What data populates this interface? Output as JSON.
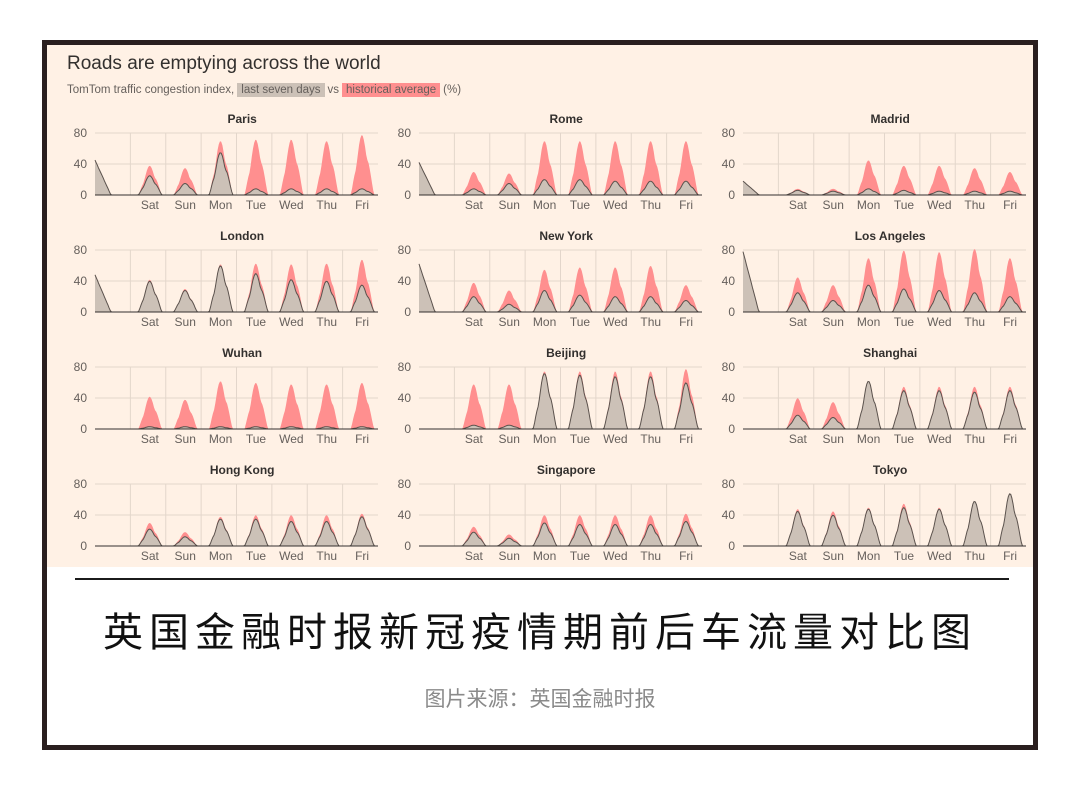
{
  "chart_title": "Roads are emptying across the world",
  "subtitle": {
    "prefix": "TomTom traffic congestion index,",
    "last_label": "last seven days",
    "vs": "vs",
    "hist_label": "historical average",
    "unit": "(%)"
  },
  "colors": {
    "last_seven_days": "#ccc1b7",
    "historical_average": "#ff8f8f",
    "background": "#fff1e5"
  },
  "caption": "英国金融时报新冠疫情期前后车流量对比图",
  "source": "图片来源：英国金融时报",
  "chart_data": {
    "type": "area",
    "y_ticks": [
      0,
      40,
      80
    ],
    "ylim": [
      0,
      80
    ],
    "days": [
      "Sat",
      "Sun",
      "Mon",
      "Tue",
      "Wed",
      "Thu",
      "Fri"
    ],
    "grid": true,
    "legend_position": "subtitle",
    "cities": [
      {
        "name": "Paris",
        "hist": [
          38,
          35,
          70,
          72,
          72,
          70,
          78
        ],
        "last": [
          25,
          15,
          55,
          8,
          8,
          8,
          8
        ],
        "start": 45
      },
      {
        "name": "Rome",
        "hist": [
          30,
          28,
          70,
          70,
          70,
          70,
          70
        ],
        "last": [
          8,
          15,
          20,
          20,
          18,
          18,
          18
        ],
        "start": 42
      },
      {
        "name": "Madrid",
        "hist": [
          8,
          8,
          45,
          38,
          38,
          35,
          30
        ],
        "last": [
          6,
          5,
          8,
          6,
          5,
          5,
          5
        ],
        "start": 18
      },
      {
        "name": "London",
        "hist": [
          42,
          30,
          62,
          63,
          62,
          63,
          68
        ],
        "last": [
          40,
          28,
          60,
          50,
          42,
          40,
          35
        ],
        "start": 48
      },
      {
        "name": "New York",
        "hist": [
          38,
          28,
          55,
          58,
          58,
          60,
          35
        ],
        "last": [
          20,
          10,
          28,
          22,
          20,
          20,
          15
        ],
        "start": 62
      },
      {
        "name": "Los Angeles",
        "hist": [
          45,
          35,
          70,
          80,
          78,
          82,
          70
        ],
        "last": [
          25,
          15,
          35,
          30,
          28,
          25,
          20
        ],
        "start": 78
      },
      {
        "name": "Wuhan",
        "hist": [
          42,
          38,
          62,
          60,
          58,
          58,
          60
        ],
        "last": [
          3,
          3,
          3,
          3,
          3,
          3,
          3
        ],
        "start": 0
      },
      {
        "name": "Beijing",
        "hist": [
          58,
          58,
          75,
          75,
          75,
          75,
          78
        ],
        "last": [
          5,
          5,
          72,
          70,
          68,
          68,
          60
        ],
        "start": 0
      },
      {
        "name": "Shanghai",
        "hist": [
          40,
          35,
          60,
          55,
          55,
          55,
          55
        ],
        "last": [
          18,
          15,
          62,
          50,
          50,
          48,
          50
        ],
        "start": 0
      },
      {
        "name": "Hong Kong",
        "hist": [
          30,
          18,
          38,
          40,
          40,
          40,
          42
        ],
        "last": [
          22,
          12,
          35,
          35,
          32,
          32,
          38
        ],
        "start": 0
      },
      {
        "name": "Singapore",
        "hist": [
          25,
          15,
          40,
          40,
          40,
          40,
          42
        ],
        "last": [
          18,
          10,
          30,
          28,
          28,
          28,
          32
        ],
        "start": 0
      },
      {
        "name": "Tokyo",
        "hist": [
          48,
          45,
          50,
          55,
          50,
          55,
          68
        ],
        "last": [
          45,
          40,
          48,
          50,
          48,
          58,
          68
        ],
        "start": 0
      }
    ]
  }
}
